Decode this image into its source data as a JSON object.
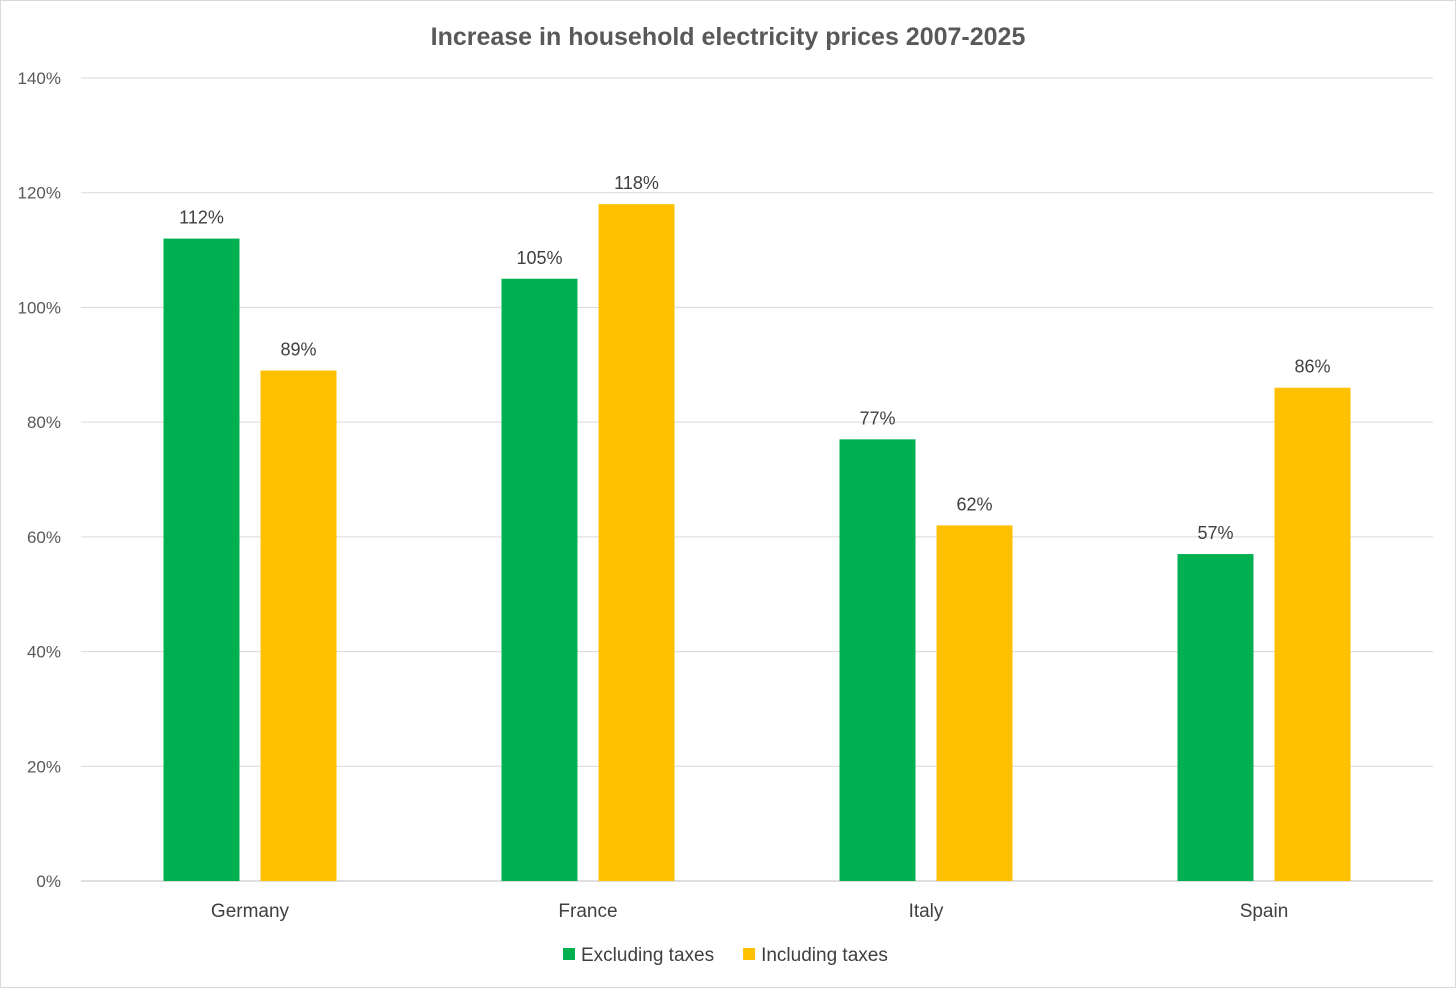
{
  "chart_data": {
    "type": "bar",
    "title": "Increase in household electricity prices 2007-2025",
    "xlabel": "",
    "ylabel": "",
    "categories": [
      "Germany",
      "France",
      "Italy",
      "Spain"
    ],
    "series": [
      {
        "name": "Excluding taxes",
        "color": "#00B050",
        "values": [
          112,
          105,
          77,
          57
        ]
      },
      {
        "name": "Including taxes",
        "color": "#FFC000",
        "values": [
          89,
          118,
          62,
          86
        ]
      }
    ],
    "ylim": [
      0,
      140
    ],
    "yticks": [
      0,
      20,
      40,
      60,
      80,
      100,
      120,
      140
    ],
    "ytick_labels": [
      "0%",
      "20%",
      "40%",
      "60%",
      "80%",
      "100%",
      "120%",
      "140%"
    ],
    "data_labels": [
      [
        "112%",
        "105%",
        "77%",
        "57%"
      ],
      [
        "89%",
        "118%",
        "62%",
        "86%"
      ]
    ],
    "grid": true,
    "legend_position": "bottom"
  }
}
